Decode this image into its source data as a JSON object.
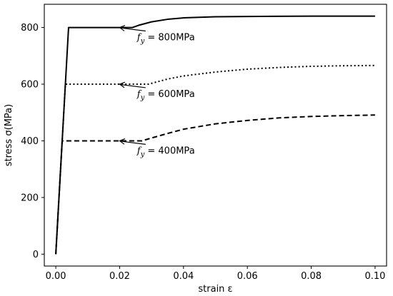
{
  "chart_data": {
    "type": "line",
    "title": "",
    "xlabel": "strain ε",
    "ylabel": "stress σ(MPa)",
    "xlim": [
      -0.0036,
      0.1036
    ],
    "ylim": [
      -42,
      882
    ],
    "xticks": [
      0.0,
      0.02,
      0.04,
      0.06,
      0.08,
      0.1
    ],
    "xtick_labels": [
      "0.00",
      "0.02",
      "0.04",
      "0.06",
      "0.08",
      "0.10"
    ],
    "yticks": [
      0,
      200,
      400,
      600,
      800
    ],
    "ytick_labels": [
      "0",
      "200",
      "400",
      "600",
      "800"
    ],
    "grid": false,
    "series": [
      {
        "style": "solid",
        "color": "#000000",
        "x": [
          0.0,
          0.004,
          0.024,
          0.026,
          0.03,
          0.035,
          0.04,
          0.05,
          0.06,
          0.08,
          0.1
        ],
        "y": [
          0,
          800,
          800,
          808,
          820,
          829,
          834,
          838,
          839,
          840,
          840
        ]
      },
      {
        "style": "dotted",
        "color": "#000000",
        "x": [
          0.0,
          0.003,
          0.029,
          0.031,
          0.035,
          0.04,
          0.05,
          0.06,
          0.07,
          0.08,
          0.09,
          0.1
        ],
        "y": [
          0,
          600,
          600,
          606,
          618,
          629,
          643,
          653,
          659,
          663,
          665,
          666
        ]
      },
      {
        "style": "dashed",
        "color": "#000000",
        "x": [
          0.0,
          0.002,
          0.027,
          0.03,
          0.035,
          0.04,
          0.05,
          0.06,
          0.07,
          0.08,
          0.09,
          0.1
        ],
        "y": [
          0,
          400,
          400,
          410,
          426,
          441,
          460,
          472,
          481,
          486,
          489,
          491
        ]
      }
    ],
    "annotations": [
      {
        "sub": "y",
        "text": " = 800MPa",
        "target_x": 0.02,
        "target_y": 800,
        "text_x": 0.025,
        "text_y": 765
      },
      {
        "sub": "y",
        "text": " = 600MPa",
        "target_x": 0.02,
        "target_y": 600,
        "text_x": 0.025,
        "text_y": 565
      },
      {
        "sub": "y",
        "text": " = 400MPa",
        "target_x": 0.02,
        "target_y": 400,
        "text_x": 0.025,
        "text_y": 365
      }
    ],
    "annotation_var": "f"
  }
}
